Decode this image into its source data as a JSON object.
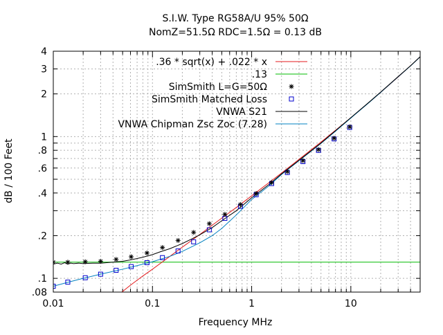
{
  "chart_data": {
    "type": "line",
    "title_lines": [
      "S.I.W. Type RG58A/U 95% 50Ω",
      "NomZ=51.5Ω  RDC=1.5Ω = 0.13 dB"
    ],
    "xlabel": "Frequency MHz",
    "ylabel": "dB / 100 Feet",
    "x_scale": "log",
    "y_scale": "log",
    "xlim": [
      0.01,
      50
    ],
    "ylim": [
      0.08,
      4
    ],
    "grid": true,
    "legend_position": "top-right",
    "x_ticks": [
      {
        "value": 0.01,
        "label": "0.01"
      },
      {
        "value": 0.1,
        "label": "0.1"
      },
      {
        "value": 1,
        "label": "1"
      },
      {
        "value": 10,
        "label": "10"
      }
    ],
    "y_ticks": [
      {
        "value": 0.08,
        "label": ".08"
      },
      {
        "value": 0.1,
        "label": ".1"
      },
      {
        "value": 0.2,
        "label": ".2"
      },
      {
        "value": 0.4,
        "label": ".4"
      },
      {
        "value": 0.6,
        "label": ".6"
      },
      {
        "value": 0.8,
        "label": ".8"
      },
      {
        "value": 1,
        "label": "1"
      },
      {
        "value": 2,
        "label": "2"
      },
      {
        "value": 3,
        "label": "3"
      },
      {
        "value": 4,
        "label": "4"
      }
    ],
    "series": [
      {
        "name": ".36 * sqrt(x) + .022 * x",
        "style": "line",
        "color": "#e41a1c",
        "x": [
          0.048,
          0.06,
          0.08,
          0.1,
          0.15,
          0.2,
          0.3,
          0.5,
          0.7,
          1,
          1.5,
          2,
          3,
          5,
          7,
          10,
          15,
          20,
          30,
          40,
          50
        ],
        "y": [
          0.079,
          0.0895,
          0.104,
          0.116,
          0.143,
          0.166,
          0.204,
          0.266,
          0.316,
          0.382,
          0.474,
          0.553,
          0.69,
          0.915,
          1.107,
          1.358,
          1.724,
          2.05,
          2.632,
          3.157,
          3.646
        ]
      },
      {
        "name": ".13",
        "style": "line",
        "color": "#00bb00",
        "x": [
          0.01,
          50
        ],
        "y": [
          0.13,
          0.13
        ]
      },
      {
        "name": "SimSmith L=G=50Ω",
        "style": "marker-star",
        "color": "#000000",
        "x": [
          0.01,
          0.014,
          0.021,
          0.03,
          0.043,
          0.061,
          0.088,
          0.126,
          0.181,
          0.26,
          0.374,
          0.537,
          0.771,
          1.11,
          1.59,
          2.29,
          3.29,
          4.72,
          6.78,
          9.74
        ],
        "y": [
          0.13,
          0.13,
          0.131,
          0.132,
          0.136,
          0.142,
          0.151,
          0.165,
          0.185,
          0.211,
          0.243,
          0.283,
          0.332,
          0.397,
          0.474,
          0.566,
          0.676,
          0.81,
          0.973,
          1.17
        ]
      },
      {
        "name": "SimSmith Matched Loss",
        "style": "marker-square",
        "color": "#0000cc",
        "x": [
          0.01,
          0.014,
          0.021,
          0.03,
          0.043,
          0.061,
          0.088,
          0.126,
          0.181,
          0.26,
          0.374,
          0.537,
          0.771,
          1.11,
          1.59,
          2.29,
          3.29,
          4.72,
          6.78,
          9.74
        ],
        "y": [
          0.088,
          0.094,
          0.101,
          0.107,
          0.114,
          0.121,
          0.129,
          0.14,
          0.156,
          0.181,
          0.22,
          0.265,
          0.322,
          0.389,
          0.466,
          0.558,
          0.666,
          0.799,
          0.963,
          1.16
        ]
      },
      {
        "name": "VNWA S21",
        "style": "line",
        "color": "#000000",
        "x": [
          0.01,
          0.011,
          0.012,
          0.013,
          0.014,
          0.015,
          0.016,
          0.018,
          0.02,
          0.025,
          0.03,
          0.04,
          0.05,
          0.06,
          0.07,
          0.08,
          0.1,
          0.12,
          0.15,
          0.2,
          0.25,
          0.3,
          0.4,
          0.5,
          0.7,
          1,
          1.5,
          2,
          3,
          5,
          7,
          10,
          15,
          20,
          30,
          40,
          50
        ],
        "y": [
          0.126,
          0.128,
          0.126,
          0.129,
          0.126,
          0.128,
          0.127,
          0.128,
          0.127,
          0.128,
          0.128,
          0.13,
          0.132,
          0.135,
          0.138,
          0.141,
          0.147,
          0.154,
          0.162,
          0.176,
          0.19,
          0.203,
          0.228,
          0.255,
          0.3,
          0.37,
          0.46,
          0.545,
          0.68,
          0.9,
          1.1,
          1.36,
          1.73,
          2.06,
          2.65,
          3.16,
          3.66
        ]
      },
      {
        "name": "VNWA Chipman Zsc Zoc (7.28)",
        "style": "line",
        "color": "#0080c0",
        "x": [
          0.01,
          0.015,
          0.02,
          0.03,
          0.05,
          0.07,
          0.1,
          0.15,
          0.2,
          0.3,
          0.4,
          0.5,
          0.7,
          1,
          1.5,
          2,
          3,
          5,
          7,
          10,
          15,
          20,
          30,
          40,
          50
        ],
        "y": [
          0.088,
          0.095,
          0.1,
          0.107,
          0.116,
          0.123,
          0.131,
          0.143,
          0.155,
          0.178,
          0.2,
          0.225,
          0.28,
          0.36,
          0.45,
          0.54,
          0.675,
          0.895,
          1.09,
          1.35,
          1.72,
          2.05,
          2.64,
          3.15,
          3.65
        ]
      }
    ]
  }
}
